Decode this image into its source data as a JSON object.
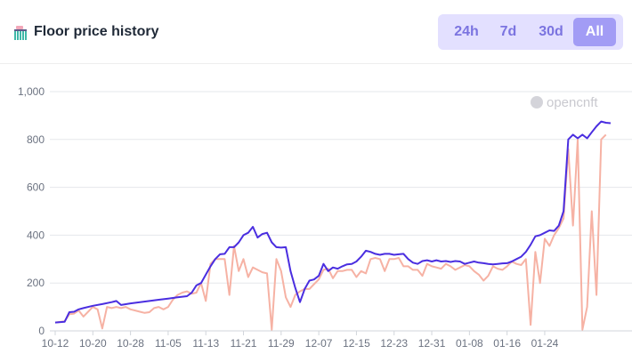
{
  "header": {
    "title": "Floor price history",
    "icon": "broom-icon"
  },
  "ranges": [
    {
      "label": "24h",
      "active": false
    },
    {
      "label": "7d",
      "active": false
    },
    {
      "label": "30d",
      "active": false
    },
    {
      "label": "All",
      "active": true
    }
  ],
  "watermark": "opencnft",
  "colors": {
    "floor_line": "#4a2ee0",
    "price_line": "#f6b2a4",
    "grid": "#e5e7eb",
    "range_bg": "#e3e0ff",
    "range_active": "#a29cf5"
  },
  "chart_data": {
    "type": "line",
    "title": "",
    "xlabel": "",
    "ylabel": "",
    "ylim": [
      0,
      1000
    ],
    "y_ticks": [
      "0",
      "200",
      "400",
      "600",
      "800",
      "1,000"
    ],
    "x_ticks": [
      "10-12",
      "10-20",
      "10-28",
      "11-05",
      "11-13",
      "11-21",
      "11-29",
      "12-07",
      "12-15",
      "12-23",
      "12-31",
      "01-08",
      "01-16",
      "01-24"
    ],
    "x_start": "10-12",
    "x_end": "01-27",
    "grid": true,
    "legend": "none",
    "series": [
      {
        "values": [
          [
            0,
            35
          ],
          [
            2,
            38
          ],
          [
            3,
            78
          ],
          [
            4,
            80
          ],
          [
            5,
            90
          ],
          [
            6,
            95
          ],
          [
            8,
            105
          ],
          [
            10,
            112
          ],
          [
            12,
            120
          ],
          [
            13,
            125
          ],
          [
            14,
            108
          ],
          [
            16,
            115
          ],
          [
            18,
            120
          ],
          [
            20,
            125
          ],
          [
            22,
            130
          ],
          [
            24,
            135
          ],
          [
            26,
            140
          ],
          [
            28,
            145
          ],
          [
            29,
            160
          ],
          [
            30,
            190
          ],
          [
            31,
            200
          ],
          [
            32,
            235
          ],
          [
            33,
            270
          ],
          [
            34,
            300
          ],
          [
            35,
            320
          ],
          [
            36,
            322
          ],
          [
            37,
            350
          ],
          [
            38,
            350
          ],
          [
            39,
            370
          ],
          [
            40,
            400
          ],
          [
            41,
            410
          ],
          [
            42,
            435
          ],
          [
            43,
            390
          ],
          [
            44,
            405
          ],
          [
            45,
            410
          ],
          [
            46,
            370
          ],
          [
            47,
            350
          ],
          [
            48,
            348
          ],
          [
            49,
            350
          ],
          [
            50,
            250
          ],
          [
            51,
            180
          ],
          [
            52,
            120
          ],
          [
            53,
            175
          ],
          [
            54,
            210
          ],
          [
            55,
            215
          ],
          [
            56,
            230
          ],
          [
            57,
            280
          ],
          [
            58,
            250
          ],
          [
            59,
            265
          ],
          [
            60,
            260
          ],
          [
            61,
            270
          ],
          [
            62,
            278
          ],
          [
            63,
            280
          ],
          [
            64,
            290
          ],
          [
            65,
            310
          ],
          [
            66,
            335
          ],
          [
            67,
            330
          ],
          [
            68,
            322
          ],
          [
            69,
            318
          ],
          [
            70,
            322
          ],
          [
            71,
            322
          ],
          [
            72,
            318
          ],
          [
            73,
            320
          ],
          [
            74,
            322
          ],
          [
            75,
            300
          ],
          [
            76,
            285
          ],
          [
            77,
            280
          ],
          [
            78,
            292
          ],
          [
            79,
            295
          ],
          [
            80,
            290
          ],
          [
            81,
            295
          ],
          [
            82,
            290
          ],
          [
            83,
            292
          ],
          [
            84,
            288
          ],
          [
            85,
            292
          ],
          [
            86,
            290
          ],
          [
            87,
            280
          ],
          [
            88,
            285
          ],
          [
            89,
            290
          ],
          [
            90,
            285
          ],
          [
            91,
            283
          ],
          [
            92,
            280
          ],
          [
            93,
            278
          ],
          [
            94,
            280
          ],
          [
            95,
            282
          ],
          [
            96,
            283
          ],
          [
            97,
            290
          ],
          [
            98,
            300
          ],
          [
            99,
            310
          ],
          [
            100,
            330
          ],
          [
            101,
            360
          ],
          [
            102,
            395
          ],
          [
            103,
            400
          ],
          [
            104,
            410
          ],
          [
            105,
            420
          ],
          [
            106,
            418
          ],
          [
            107,
            440
          ],
          [
            108,
            500
          ],
          [
            109,
            800
          ],
          [
            110,
            820
          ],
          [
            111,
            805
          ],
          [
            112,
            820
          ],
          [
            113,
            805
          ],
          [
            114,
            830
          ],
          [
            115,
            855
          ],
          [
            116,
            875
          ],
          [
            117,
            870
          ],
          [
            118,
            868
          ]
        ]
      },
      {
        "values": [
          [
            0,
            35
          ],
          [
            2,
            40
          ],
          [
            3,
            70
          ],
          [
            4,
            72
          ],
          [
            5,
            85
          ],
          [
            6,
            60
          ],
          [
            7,
            80
          ],
          [
            8,
            100
          ],
          [
            9,
            90
          ],
          [
            10,
            10
          ],
          [
            11,
            100
          ],
          [
            12,
            95
          ],
          [
            13,
            100
          ],
          [
            14,
            95
          ],
          [
            15,
            100
          ],
          [
            16,
            90
          ],
          [
            17,
            85
          ],
          [
            18,
            80
          ],
          [
            19,
            75
          ],
          [
            20,
            78
          ],
          [
            21,
            95
          ],
          [
            22,
            100
          ],
          [
            23,
            90
          ],
          [
            24,
            100
          ],
          [
            25,
            130
          ],
          [
            26,
            150
          ],
          [
            27,
            160
          ],
          [
            28,
            165
          ],
          [
            29,
            155
          ],
          [
            30,
            160
          ],
          [
            31,
            200
          ],
          [
            32,
            125
          ],
          [
            33,
            280
          ],
          [
            34,
            300
          ],
          [
            35,
            300
          ],
          [
            36,
            300
          ],
          [
            37,
            150
          ],
          [
            38,
            355
          ],
          [
            39,
            250
          ],
          [
            40,
            300
          ],
          [
            41,
            225
          ],
          [
            42,
            265
          ],
          [
            43,
            255
          ],
          [
            44,
            245
          ],
          [
            45,
            240
          ],
          [
            46,
            5
          ],
          [
            47,
            300
          ],
          [
            48,
            250
          ],
          [
            49,
            140
          ],
          [
            50,
            100
          ],
          [
            51,
            150
          ],
          [
            52,
            165
          ],
          [
            53,
            175
          ],
          [
            54,
            175
          ],
          [
            55,
            195
          ],
          [
            56,
            215
          ],
          [
            57,
            255
          ],
          [
            58,
            260
          ],
          [
            59,
            220
          ],
          [
            60,
            250
          ],
          [
            61,
            250
          ],
          [
            62,
            255
          ],
          [
            63,
            255
          ],
          [
            64,
            225
          ],
          [
            65,
            250
          ],
          [
            66,
            240
          ],
          [
            67,
            300
          ],
          [
            68,
            305
          ],
          [
            69,
            300
          ],
          [
            70,
            250
          ],
          [
            71,
            300
          ],
          [
            72,
            300
          ],
          [
            73,
            305
          ],
          [
            74,
            270
          ],
          [
            75,
            270
          ],
          [
            76,
            255
          ],
          [
            77,
            255
          ],
          [
            78,
            230
          ],
          [
            79,
            280
          ],
          [
            80,
            270
          ],
          [
            81,
            265
          ],
          [
            82,
            260
          ],
          [
            83,
            280
          ],
          [
            84,
            270
          ],
          [
            85,
            255
          ],
          [
            86,
            265
          ],
          [
            87,
            275
          ],
          [
            88,
            270
          ],
          [
            89,
            250
          ],
          [
            90,
            235
          ],
          [
            91,
            210
          ],
          [
            92,
            230
          ],
          [
            93,
            270
          ],
          [
            94,
            260
          ],
          [
            95,
            255
          ],
          [
            96,
            270
          ],
          [
            97,
            290
          ],
          [
            98,
            280
          ],
          [
            99,
            275
          ],
          [
            100,
            300
          ],
          [
            101,
            25
          ],
          [
            102,
            330
          ],
          [
            103,
            200
          ],
          [
            104,
            385
          ],
          [
            105,
            355
          ],
          [
            106,
            400
          ],
          [
            107,
            430
          ],
          [
            108,
            470
          ],
          [
            109,
            760
          ],
          [
            110,
            440
          ],
          [
            111,
            800
          ],
          [
            112,
            5
          ],
          [
            113,
            100
          ],
          [
            114,
            500
          ],
          [
            115,
            150
          ],
          [
            116,
            800
          ],
          [
            117,
            820
          ]
        ]
      }
    ]
  }
}
